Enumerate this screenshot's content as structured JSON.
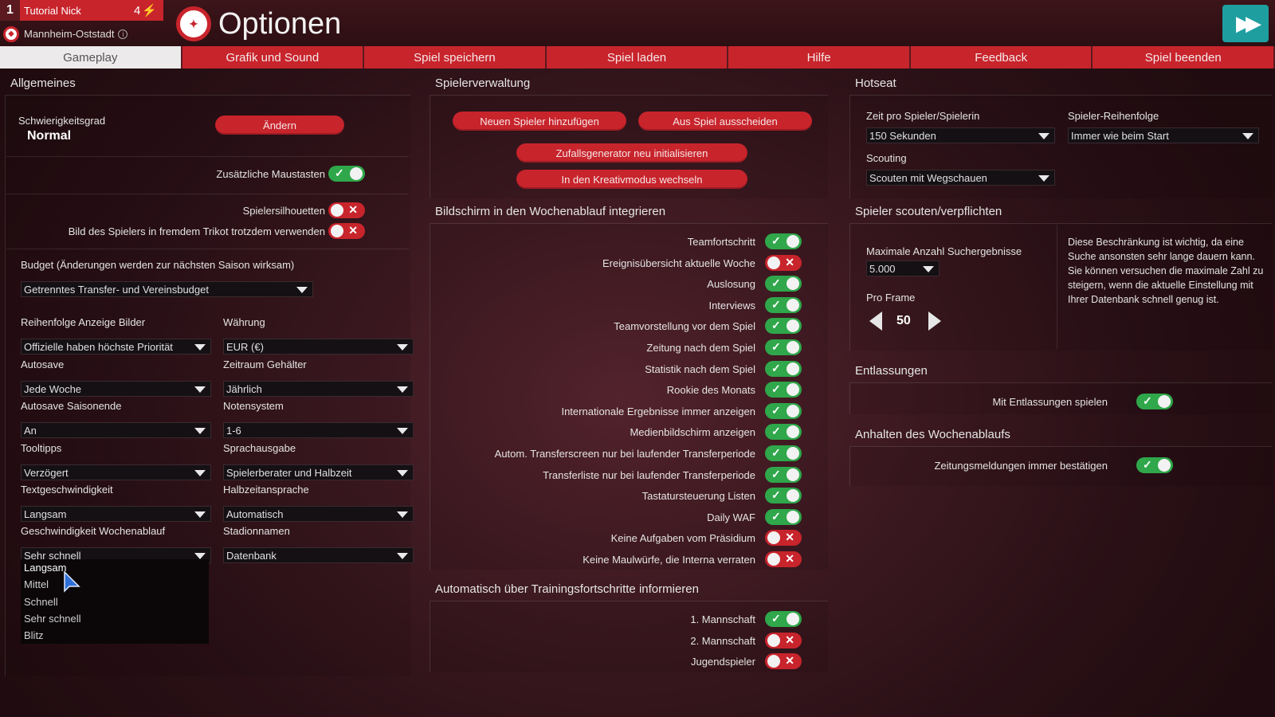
{
  "player": {
    "rank": "1",
    "name": "Tutorial Nick",
    "count": "4",
    "club": "Mannheim-Oststadt"
  },
  "page_title": "Optionen",
  "tabs": [
    "Gameplay",
    "Grafik und Sound",
    "Spiel speichern",
    "Spiel laden",
    "Hilfe",
    "Feedback",
    "Spiel beenden"
  ],
  "allgemeines": {
    "title": "Allgemeines",
    "difficulty_label": "Schwierigkeitsgrad",
    "difficulty_value": "Normal",
    "change_button": "Ändern",
    "extra_mouse": "Zusätzliche Maustasten",
    "silhouettes": "Spielersilhouetten",
    "foreign_jersey": "Bild des Spielers in fremdem Trikot trotzdem verwenden",
    "budget_label": "Budget (Änderungen werden zur nächsten Saison wirksam)",
    "budget_value": "Getrenntes Transfer- und Vereinsbudget",
    "dropdowns": [
      {
        "label": "Reihenfolge Anzeige Bilder",
        "value": "Offizielle haben höchste Priorität"
      },
      {
        "label": "Währung",
        "value": "EUR (€)"
      },
      {
        "label": "Autosave",
        "value": "Jede Woche"
      },
      {
        "label": "Zeitraum Gehälter",
        "value": "Jährlich"
      },
      {
        "label": "Autosave Saisonende",
        "value": "An"
      },
      {
        "label": "Notensystem",
        "value": "1-6"
      },
      {
        "label": "Tooltipps",
        "value": "Verzögert"
      },
      {
        "label": "Sprachausgabe",
        "value": "Spielerberater und Halbzeit"
      },
      {
        "label": "Textgeschwindigkeit",
        "value": "Langsam"
      },
      {
        "label": "Halbzeitansprache",
        "value": "Automatisch"
      },
      {
        "label": "Geschwindigkeit Wochenablauf",
        "value": "Sehr schnell"
      },
      {
        "label": "Stadionnamen",
        "value": "Datenbank"
      }
    ],
    "speed_options": [
      "Langsam",
      "Mittel",
      "Schnell",
      "Sehr schnell",
      "Blitz"
    ]
  },
  "spielerverwaltung": {
    "title": "Spielerverwaltung",
    "buttons": [
      "Neuen Spieler hinzufügen",
      "Aus Spiel ausscheiden",
      "Zufallsgenerator neu initialisieren",
      "In den Kreativmodus wechseln"
    ]
  },
  "bildschirm": {
    "title": "Bildschirm in den Wochenablauf integrieren",
    "items": [
      {
        "label": "Teamfortschritt",
        "on": true
      },
      {
        "label": "Ereignisübersicht aktuelle Woche",
        "on": false
      },
      {
        "label": "Auslosung",
        "on": true
      },
      {
        "label": "Interviews",
        "on": true
      },
      {
        "label": "Teamvorstellung vor dem Spiel",
        "on": true
      },
      {
        "label": "Zeitung nach dem Spiel",
        "on": true
      },
      {
        "label": "Statistik nach dem Spiel",
        "on": true
      },
      {
        "label": "Rookie des Monats",
        "on": true
      },
      {
        "label": "Internationale Ergebnisse immer anzeigen",
        "on": true
      },
      {
        "label": "Medienbildschirm anzeigen",
        "on": true
      },
      {
        "label": "Autom. Transferscreen nur bei laufender Transferperiode",
        "on": true
      },
      {
        "label": "Transferliste nur bei laufender Transferperiode",
        "on": true
      },
      {
        "label": "Tastatursteuerung Listen",
        "on": true
      },
      {
        "label": "Daily WAF",
        "on": true
      },
      {
        "label": "Keine Aufgaben vom Präsidium",
        "on": false
      },
      {
        "label": "Keine Maulwürfe, die Interna verraten",
        "on": false
      }
    ]
  },
  "training": {
    "title": "Automatisch über Trainingsfortschritte informieren",
    "items": [
      {
        "label": "1. Mannschaft",
        "on": true
      },
      {
        "label": "2. Mannschaft",
        "on": false
      },
      {
        "label": "Jugendspieler",
        "on": false
      }
    ]
  },
  "hotseat": {
    "title": "Hotseat",
    "time_label": "Zeit pro Spieler/Spielerin",
    "time_value": "150 Sekunden",
    "order_label": "Spieler-Reihenfolge",
    "order_value": "Immer wie beim Start",
    "scouting_label": "Scouting",
    "scouting_value": "Scouten mit Wegschauen"
  },
  "scouting": {
    "title": "Spieler scouten/verpflichten",
    "max_label": "Maximale Anzahl Suchergebnisse",
    "max_value": "5.000",
    "per_frame_label": "Pro Frame",
    "per_frame_value": "50",
    "note": "Diese Beschränkung ist wichtig, da eine Suche ansonsten sehr lange dauern kann. Sie können versuchen die maximale Zahl zu steigern, wenn die aktuelle Einstellung mit Ihrer Datenbank schnell genug ist."
  },
  "entlassungen": {
    "title": "Entlassungen",
    "label": "Mit Entlassungen spielen",
    "on": true
  },
  "anhalten": {
    "title": "Anhalten des Wochenablaufs",
    "label": "Zeitungsmeldungen immer bestätigen",
    "on": true
  },
  "colors": {
    "accent": "#c8242c",
    "toggle_on": "#2fa74a",
    "teal": "#1f9ea0"
  }
}
